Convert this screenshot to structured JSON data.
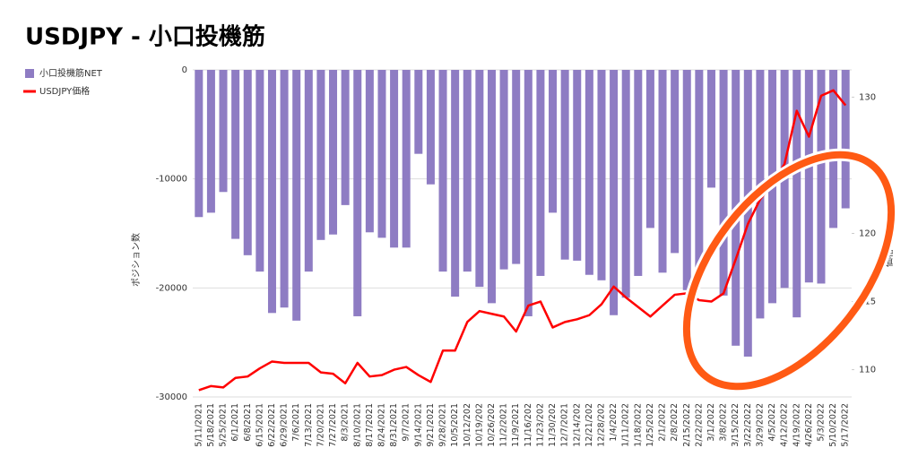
{
  "chart_data": {
    "type": "bar",
    "title": "USDJPY - 小口投機筋",
    "ylabel": "ポジション数",
    "y2label": "価格",
    "categories": [
      "5/11/2021",
      "5/18/2021",
      "5/25/2021",
      "6/1/2021",
      "6/8/2021",
      "6/15/2021",
      "6/22/2021",
      "6/29/2021",
      "7/6/2021",
      "7/13/2021",
      "7/20/2021",
      "7/27/2021",
      "8/3/2021",
      "8/10/2021",
      "8/17/2021",
      "8/24/2021",
      "8/31/2021",
      "9/7/2021",
      "9/14/2021",
      "9/21/2021",
      "9/28/2021",
      "10/5/2021",
      "10/12/202",
      "10/19/202",
      "10/26/202",
      "11/2/2021",
      "11/9/2021",
      "11/16/202",
      "11/23/202",
      "11/30/202",
      "12/7/2021",
      "12/14/202",
      "12/21/202",
      "12/28/202",
      "1/4/2022",
      "1/11/2022",
      "1/18/2022",
      "1/25/2022",
      "2/1/2022",
      "2/8/2022",
      "2/15/2022",
      "2/22/2022",
      "3/1/2022",
      "3/8/2022",
      "3/15/2022",
      "3/22/2022",
      "3/29/2022",
      "4/5/2022",
      "4/12/2022",
      "4/19/2022",
      "4/26/2022",
      "5/3/2022",
      "5/10/2022",
      "5/17/2022"
    ],
    "series": [
      {
        "name": "小口投機筋NET",
        "type": "bar",
        "color": "#8e7cc3",
        "values": [
          -13500,
          -13100,
          -11200,
          -15500,
          -17000,
          -18500,
          -22300,
          -21800,
          -23000,
          -18500,
          -15600,
          -15100,
          -12400,
          -22600,
          -14900,
          -15400,
          -16300,
          -16300,
          -7700,
          -10500,
          -18500,
          -20800,
          -18500,
          -19900,
          -21400,
          -18300,
          -17800,
          -22600,
          -18900,
          -13100,
          -17400,
          -17500,
          -18800,
          -19300,
          -22500,
          -20900,
          -18900,
          -14500,
          -18600,
          -16800,
          -20200,
          -19200,
          -10800,
          -20700,
          -25300,
          -26300,
          -22800,
          -21400,
          -20000,
          -22700,
          -19500,
          -19600,
          -14500,
          -12700
        ]
      },
      {
        "name": "USDJPY価格",
        "type": "line",
        "axis": "y2",
        "color": "#ff0000",
        "values": [
          108.5,
          108.8,
          108.7,
          109.4,
          109.5,
          110.1,
          110.6,
          110.5,
          110.5,
          110.5,
          109.8,
          109.7,
          109.0,
          110.5,
          109.5,
          109.6,
          110.0,
          110.2,
          109.6,
          109.1,
          111.4,
          111.4,
          113.5,
          114.3,
          114.1,
          113.9,
          112.8,
          114.7,
          115.0,
          113.1,
          113.5,
          113.7,
          114.0,
          114.8,
          116.1,
          115.3,
          114.6,
          113.9,
          114.7,
          115.5,
          115.6,
          115.1,
          115.0,
          115.6,
          118.1,
          120.7,
          122.5,
          123.6,
          125.1,
          129.0,
          127.1,
          130.1,
          130.5,
          129.4
        ]
      }
    ],
    "ylim": [
      -30000,
      0
    ],
    "yticks": [
      0,
      -10000,
      -20000,
      -30000
    ],
    "y2lim": [
      108,
      132
    ],
    "y2ticks": [
      110,
      115,
      120,
      130
    ],
    "grid": true,
    "legend": "left"
  }
}
